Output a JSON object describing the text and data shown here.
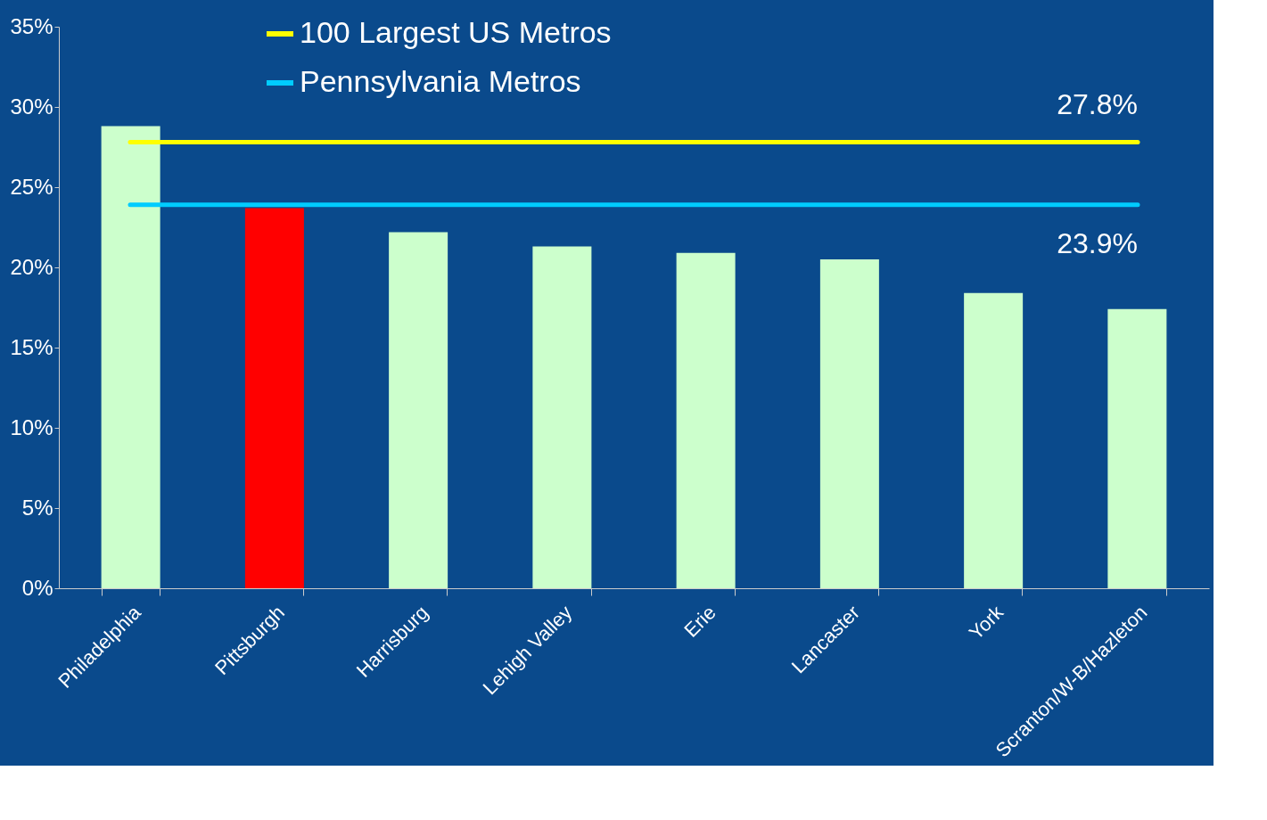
{
  "chart_data": {
    "type": "bar",
    "categories": [
      "Philadelphia",
      "Pittsburgh",
      "Harrisburg",
      "Lehigh Valley",
      "Erie",
      "Lancaster",
      "York",
      "Scranton/W-B/Hazleton"
    ],
    "values": [
      28.8,
      23.7,
      22.2,
      21.3,
      20.9,
      20.5,
      18.4,
      17.4
    ],
    "colors": [
      "#ccffcc",
      "#ff0000",
      "#ccffcc",
      "#ccffcc",
      "#ccffcc",
      "#ccffcc",
      "#ccffcc",
      "#ccffcc"
    ],
    "ylim": [
      0,
      35
    ],
    "yticks": [
      {
        "value": 0,
        "label": "0%"
      },
      {
        "value": 5,
        "label": "5%"
      },
      {
        "value": 10,
        "label": "10%"
      },
      {
        "value": 15,
        "label": "15%"
      },
      {
        "value": 20,
        "label": "20%"
      },
      {
        "value": 25,
        "label": "25%"
      },
      {
        "value": 30,
        "label": "30%"
      },
      {
        "value": 35,
        "label": "35%"
      }
    ],
    "ref_lines": [
      {
        "axis": "y",
        "value": 27.8,
        "label": "100 Largest US Metros",
        "color": "#ffff00"
      },
      {
        "axis": "y",
        "value": 23.9,
        "label": "Pennsylvania Metros",
        "color": "#00ccff"
      }
    ],
    "annotations": [
      {
        "text": "27.8%",
        "y": 27.8
      },
      {
        "text": "23.9%",
        "y": 23.9
      }
    ],
    "legend": "top left",
    "grid": false
  }
}
